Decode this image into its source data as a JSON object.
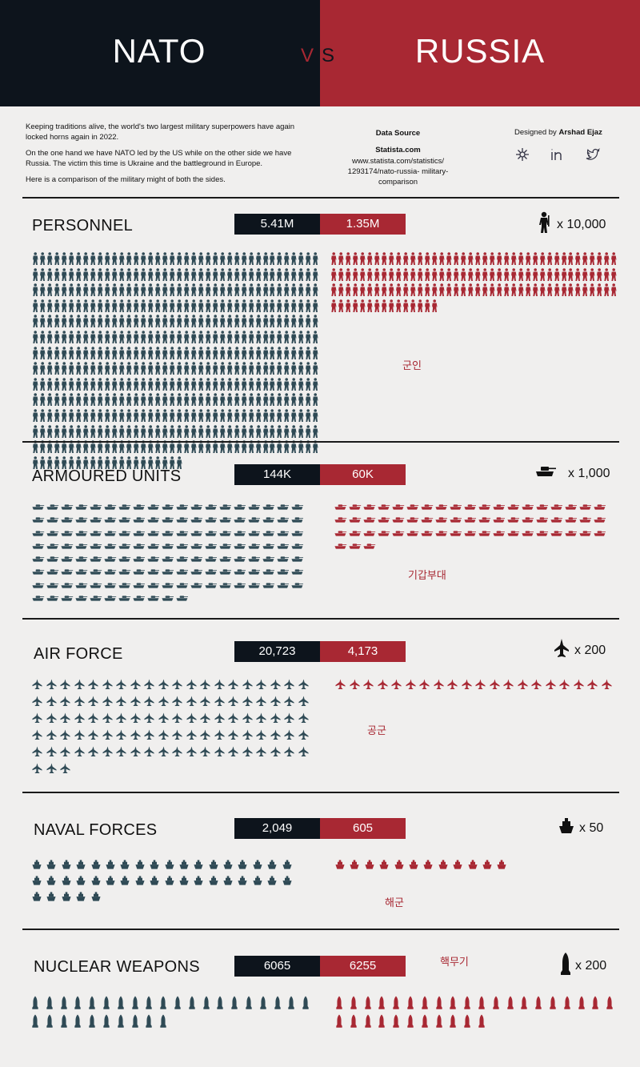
{
  "header": {
    "left": "NATO",
    "right": "RUSSIA",
    "vs_v": "V",
    "vs_s": "S"
  },
  "intro": {
    "p1": "Keeping traditions alive, the world's two largest military superpowers have again locked horns again in 2022.",
    "p2": "On the one hand we have NATO led by the US while on the other side we have Russia. The victim this time is Ukraine and the battleground in Europe.",
    "p3": "Here is a comparison of the military might of both the sides."
  },
  "source": {
    "heading": "Data Source",
    "name": "Statista.com",
    "url": "www.statista.com/statistics/ 1293174/nato-russia- military-comparison"
  },
  "designer": {
    "prefix": "Designed by",
    "name": "Arshad Ejaz"
  },
  "social_icons": [
    "dribbble-icon",
    "linkedin-icon",
    "twitter-icon"
  ],
  "colors": {
    "nato": "#0d141c",
    "russia": "#a82833",
    "nato_icon": "#2f4a55",
    "background": "#f0efee"
  },
  "sections": [
    {
      "title": "PERSONNEL",
      "nato_value": "5.41M",
      "russia_value": "1.35M",
      "unit_label": "x 10,000",
      "unit_icon": "soldier-icon",
      "korean": "군인",
      "nato_icons": 541,
      "russia_icons": 135
    },
    {
      "title": "ARMOURED UNITS",
      "nato_value": "144K",
      "russia_value": "60K",
      "unit_label": "x 1,000",
      "unit_icon": "tank-icon",
      "korean": "기갑부대",
      "nato_icons": 144,
      "russia_icons": 60
    },
    {
      "title": "AIR FORCE",
      "nato_value": "20,723",
      "russia_value": "4,173",
      "unit_label": "x 200",
      "unit_icon": "jet-icon",
      "korean": "공군",
      "nato_icons": 103,
      "russia_icons": 20
    },
    {
      "title": "NAVAL FORCES",
      "nato_value": "2,049",
      "russia_value": "605",
      "unit_label": "x 50",
      "unit_icon": "ship-icon",
      "korean": "해군",
      "nato_icons": 41,
      "russia_icons": 12
    },
    {
      "title": "NUCLEAR WEAPONS",
      "nato_value": "6065",
      "russia_value": "6255",
      "unit_label": "x 200",
      "unit_icon": "missile-icon",
      "korean": "핵무기",
      "nato_icons": 30,
      "russia_icons": 31
    }
  ]
}
